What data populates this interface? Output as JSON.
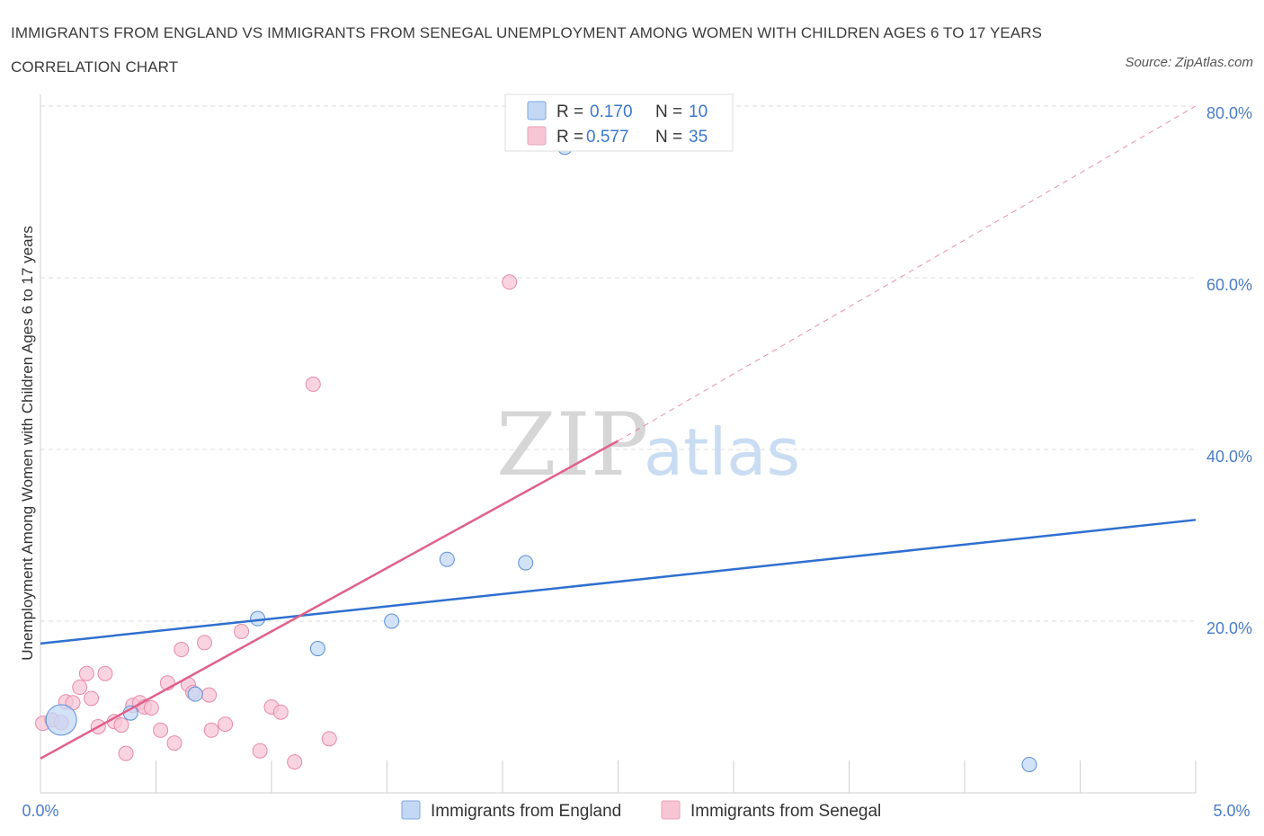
{
  "header": {
    "title": "IMMIGRANTS FROM ENGLAND VS IMMIGRANTS FROM SENEGAL UNEMPLOYMENT AMONG WOMEN WITH CHILDREN AGES 6 TO 17 YEARS CORRELATION CHART",
    "source": "Source: ZipAtlas.com"
  },
  "watermark": {
    "zip": "ZIP",
    "atlas": "atlas"
  },
  "colors": {
    "england": "#5b8fd9",
    "england_fill": "#c3d8f5",
    "england_line": "#2f6fcf",
    "senegal": "#e88aa8",
    "senegal_fill": "#f7c6d5",
    "senegal_line": "#e0608a",
    "grid": "#dddddd",
    "tick_text": "#4a7cc9"
  },
  "legend": {
    "rows": [
      {
        "r_label": "R = ",
        "r_value": "0.170",
        "n_label": "N = ",
        "n_value": "10"
      },
      {
        "r_label": "R = ",
        "r_value": "0.577",
        "n_label": "N = ",
        "n_value": "35"
      }
    ]
  },
  "chart_data": {
    "type": "scatter",
    "title": "IMMIGRANTS FROM ENGLAND VS IMMIGRANTS FROM SENEGAL UNEMPLOYMENT AMONG WOMEN WITH CHILDREN AGES 6 TO 17 YEARS CORRELATION CHART",
    "xlabel": "",
    "ylabel": "Unemployment Among Women with Children Ages 6 to 17 years",
    "xlim": [
      0,
      5
    ],
    "ylim": [
      0,
      80
    ],
    "x_tick_labels": [
      "0.0%",
      "5.0%"
    ],
    "y_ticks": [
      20,
      40,
      60,
      80
    ],
    "y_tick_labels": [
      "20.0%",
      "40.0%",
      "60.0%",
      "80.0%"
    ],
    "grid": true,
    "series": [
      {
        "name": "Immigrants from England",
        "color": "#5b8fd9",
        "points": [
          {
            "x": 0.09,
            "y": 8.5,
            "big": true
          },
          {
            "x": 0.39,
            "y": 9.3
          },
          {
            "x": 0.67,
            "y": 11.5
          },
          {
            "x": 0.94,
            "y": 20.3
          },
          {
            "x": 1.2,
            "y": 16.8
          },
          {
            "x": 1.52,
            "y": 20.0
          },
          {
            "x": 1.76,
            "y": 27.2
          },
          {
            "x": 2.1,
            "y": 26.8
          },
          {
            "x": 2.27,
            "y": 75.2
          },
          {
            "x": 4.28,
            "y": 3.3
          }
        ],
        "trend": {
          "x0": 0,
          "y0": 17.4,
          "x1": 5,
          "y1": 31.8
        }
      },
      {
        "name": "Immigrants from Senegal",
        "color": "#e88aa8",
        "points": [
          {
            "x": 0.01,
            "y": 8.1
          },
          {
            "x": 0.05,
            "y": 8.5
          },
          {
            "x": 0.09,
            "y": 8.2
          },
          {
            "x": 0.11,
            "y": 10.6
          },
          {
            "x": 0.14,
            "y": 10.5
          },
          {
            "x": 0.17,
            "y": 12.3
          },
          {
            "x": 0.2,
            "y": 13.9
          },
          {
            "x": 0.22,
            "y": 11.0
          },
          {
            "x": 0.25,
            "y": 7.7
          },
          {
            "x": 0.28,
            "y": 13.9
          },
          {
            "x": 0.32,
            "y": 8.3
          },
          {
            "x": 0.35,
            "y": 7.9
          },
          {
            "x": 0.37,
            "y": 4.6
          },
          {
            "x": 0.4,
            "y": 10.2
          },
          {
            "x": 0.43,
            "y": 10.5
          },
          {
            "x": 0.45,
            "y": 10.0
          },
          {
            "x": 0.48,
            "y": 9.9
          },
          {
            "x": 0.52,
            "y": 7.3
          },
          {
            "x": 0.55,
            "y": 12.8
          },
          {
            "x": 0.58,
            "y": 5.8
          },
          {
            "x": 0.61,
            "y": 16.7
          },
          {
            "x": 0.64,
            "y": 12.6
          },
          {
            "x": 0.66,
            "y": 11.7
          },
          {
            "x": 0.71,
            "y": 17.5
          },
          {
            "x": 0.73,
            "y": 11.4
          },
          {
            "x": 0.74,
            "y": 7.3
          },
          {
            "x": 0.8,
            "y": 8.0
          },
          {
            "x": 0.87,
            "y": 18.8
          },
          {
            "x": 0.95,
            "y": 4.9
          },
          {
            "x": 1.0,
            "y": 10.0
          },
          {
            "x": 1.04,
            "y": 9.4
          },
          {
            "x": 1.1,
            "y": 3.6
          },
          {
            "x": 1.18,
            "y": 47.6
          },
          {
            "x": 1.25,
            "y": 6.3
          },
          {
            "x": 2.03,
            "y": 59.5
          }
        ],
        "trend": {
          "x0": 0,
          "y0": 4.0,
          "x1": 2.5,
          "y1": 41.0
        },
        "trend_dashed": {
          "x0": 2.5,
          "y0": 41.0,
          "x1": 5,
          "y1": 80.0
        }
      }
    ]
  }
}
